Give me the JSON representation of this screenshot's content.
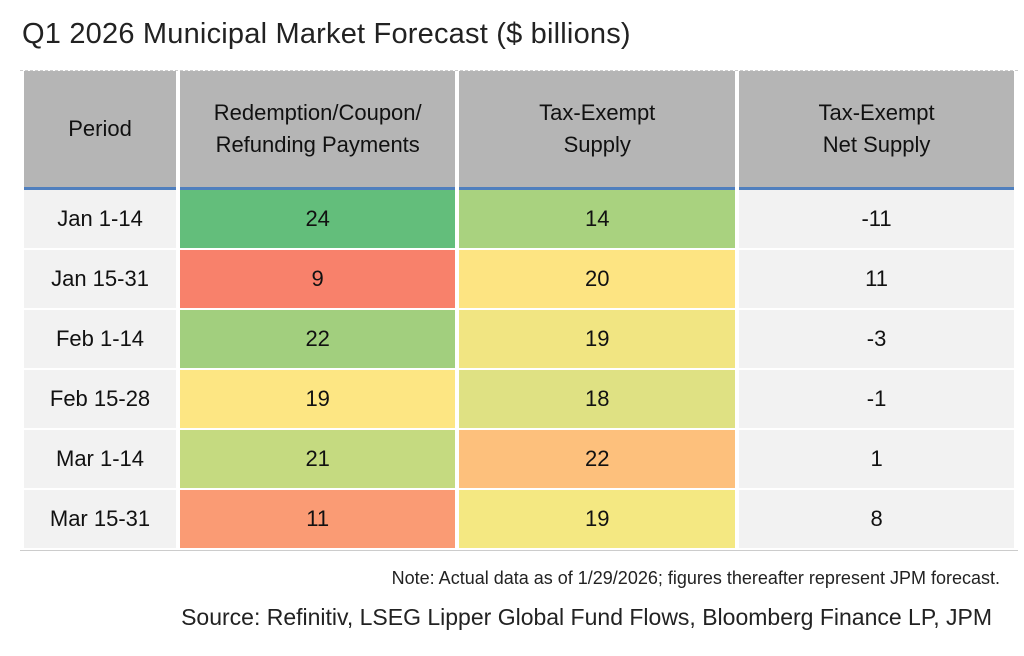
{
  "chart_data": {
    "type": "table",
    "title": "Q1 2026 Municipal Market Forecast ($ billions)",
    "columns": [
      "Period",
      "Redemption/Coupon/ Refunding Payments",
      "Tax-Exempt Supply",
      "Tax-Exempt Net Supply"
    ],
    "rows": [
      {
        "period": "Jan 1-14",
        "redemption": "24",
        "supply": "14",
        "net": "-11",
        "redemption_color": "#63be7b",
        "supply_color": "#a9d27f"
      },
      {
        "period": "Jan 15-31",
        "redemption": "9",
        "supply": "20",
        "net": "11",
        "redemption_color": "#f8816b",
        "supply_color": "#fde482"
      },
      {
        "period": "Feb 1-14",
        "redemption": "22",
        "supply": "19",
        "net": "-3",
        "redemption_color": "#a2cf7e",
        "supply_color": "#f1e582"
      },
      {
        "period": "Feb 15-28",
        "redemption": "19",
        "supply": "18",
        "net": "-1",
        "redemption_color": "#fde683",
        "supply_color": "#dfe183"
      },
      {
        "period": "Mar 1-14",
        "redemption": "21",
        "supply": "22",
        "net": "1",
        "redemption_color": "#c5da80",
        "supply_color": "#fdc07c"
      },
      {
        "period": "Mar 15-31",
        "redemption": "11",
        "supply": "19",
        "net": "8",
        "redemption_color": "#fa9b74",
        "supply_color": "#f4e882"
      }
    ],
    "note": "Note: Actual data as of 1/29/2026; figures thereafter represent JPM forecast.",
    "source": "Source: Refinitiv, LSEG Lipper Global Fund Flows, Bloomberg Finance LP, JPM"
  },
  "header": {
    "line1": [
      "Period",
      "Redemption/Coupon/",
      "Tax-Exempt",
      "Tax-Exempt"
    ],
    "line2": [
      "",
      "Refunding Payments",
      "Supply",
      "Net Supply"
    ]
  }
}
